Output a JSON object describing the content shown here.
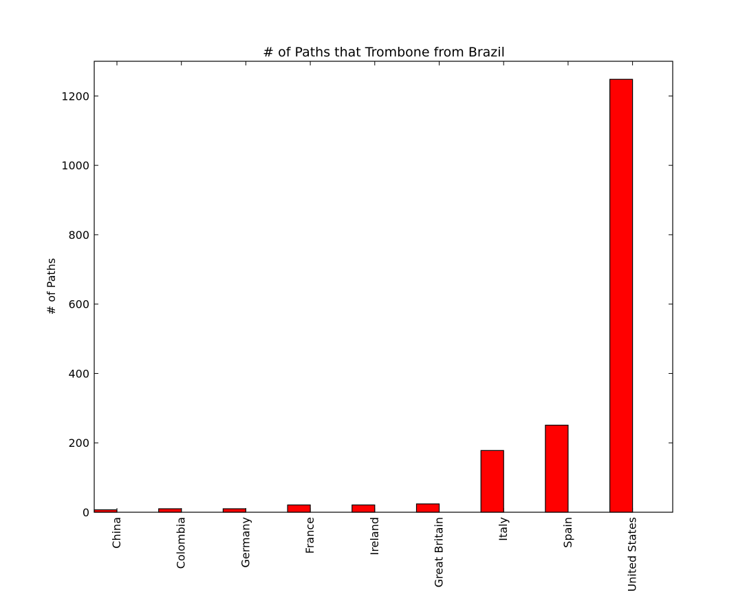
{
  "chart_data": {
    "type": "bar",
    "title": "# of Paths that Trombone from Brazil",
    "xlabel": "",
    "ylabel": "# of Paths",
    "categories": [
      "China",
      "Colombia",
      "Germany",
      "France",
      "Ireland",
      "Great Britain",
      "Italy",
      "Spain",
      "United States"
    ],
    "values": [
      7,
      10,
      10,
      21,
      21,
      24,
      178,
      251,
      1248
    ],
    "ylim": [
      0,
      1300
    ],
    "yticks": [
      0,
      200,
      400,
      600,
      800,
      1000,
      1200
    ],
    "bar_color": "#ff0000",
    "edge_color": "#000000",
    "grid": false,
    "legend": "none"
  }
}
